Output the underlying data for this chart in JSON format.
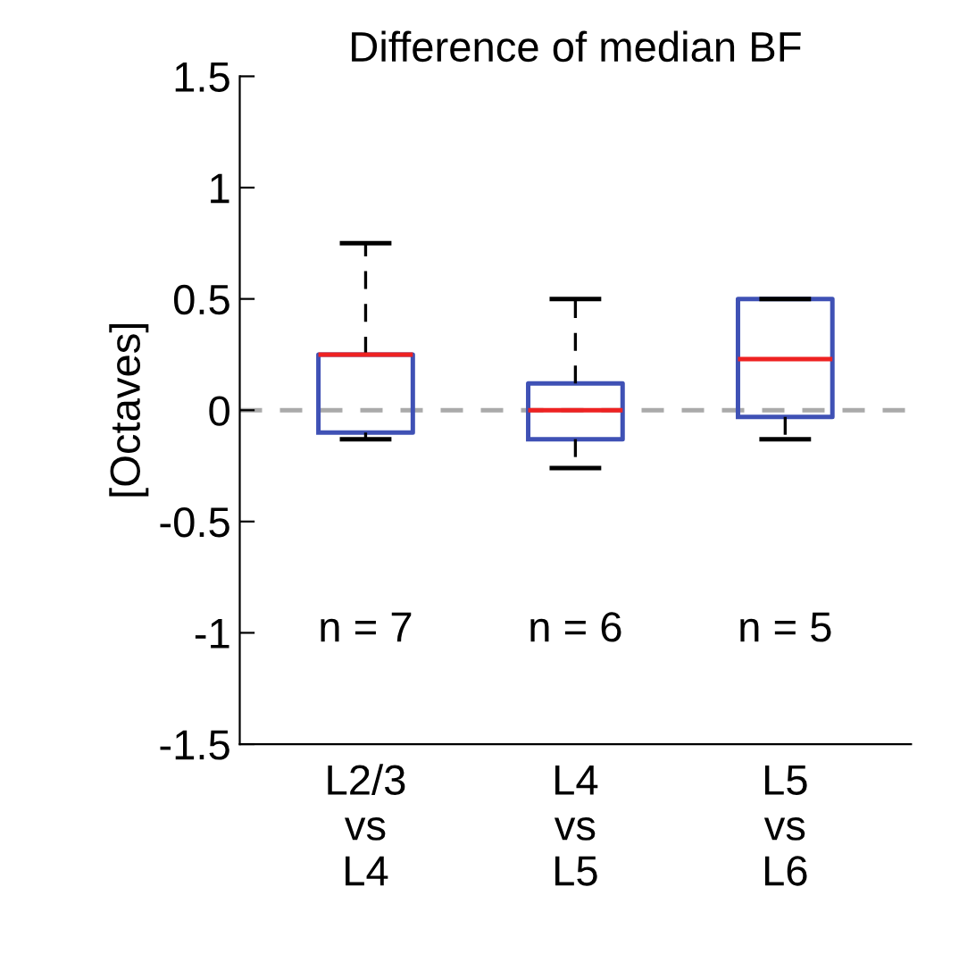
{
  "chart_data": {
    "type": "box",
    "title": "Difference of median BF",
    "ylabel": "[Octaves]",
    "categories": [
      "L2/3\nvs\nL4",
      "L4\nvs\nL5",
      "L5\nvs\nL6"
    ],
    "boxes": [
      {
        "low": -0.13,
        "q1": -0.1,
        "median": 0.25,
        "q3": 0.25,
        "high": 0.75
      },
      {
        "low": -0.26,
        "q1": -0.13,
        "median": 0,
        "q3": 0.12,
        "high": 0.5
      },
      {
        "low": -0.13,
        "q1": -0.03,
        "median": 0.23,
        "q3": 0.5,
        "high": 0.5
      }
    ],
    "ylim": [
      -1.5,
      1.5
    ],
    "yticks": [
      -1.5,
      -1,
      -0.5,
      0,
      0.5,
      1,
      1.5
    ],
    "ref_lines": [
      {
        "axis": "y",
        "value": 0,
        "color": "#aaaaaa",
        "line_style": "dashed"
      }
    ],
    "annotations": [
      "n = 7",
      "n = 6",
      "n = 5"
    ],
    "grid": false
  }
}
